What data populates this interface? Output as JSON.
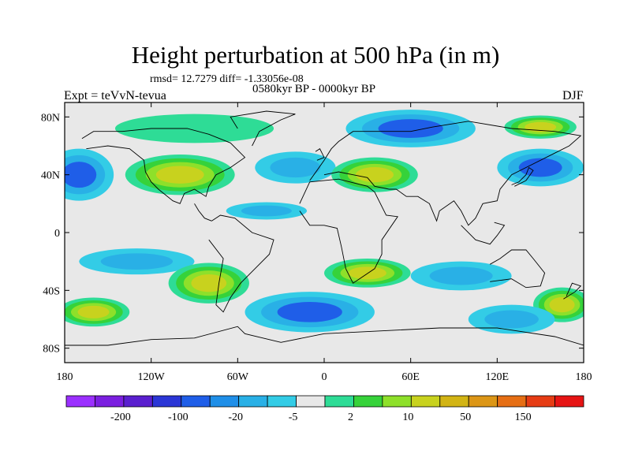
{
  "title": "Height perturbation at 500 hPa (in m)",
  "stats_text": "rmsd= 12.7279 diff= -1.33056e-08",
  "period": "0580kyr BP - 0000kyr BP",
  "experiment": "Expt = teVvN-tevua",
  "season": "DJF",
  "x_axis": {
    "ticks": [
      "180",
      "120W",
      "60W",
      "0",
      "60E",
      "120E",
      "180"
    ]
  },
  "y_axis": {
    "ticks": [
      "80N",
      "40N",
      "0",
      "40S",
      "80S"
    ]
  },
  "colorbar": {
    "colors": [
      "#9b30ff",
      "#7b1fe0",
      "#5a1fcf",
      "#2b36d6",
      "#1f5ee8",
      "#1f8fe8",
      "#29b0e6",
      "#33cce6",
      "#e8e8e8",
      "#2edc96",
      "#36d23a",
      "#8ee02a",
      "#c8d21e",
      "#d2b414",
      "#dc9616",
      "#e66e14",
      "#e63c14",
      "#e61414"
    ],
    "labels": [
      "-200",
      "-100",
      "-20",
      "-5",
      "2",
      "10",
      "50",
      "150"
    ]
  },
  "fields": {
    "background": "#e8e8e8",
    "blobs": [
      {
        "lon": -170,
        "lat": 40,
        "rx": 24,
        "ry": 18,
        "level": -20
      },
      {
        "lon": -100,
        "lat": 40,
        "rx": 38,
        "ry": 14,
        "level": 10
      },
      {
        "lon": -90,
        "lat": 72,
        "rx": 55,
        "ry": 10,
        "level": 2
      },
      {
        "lon": -20,
        "lat": 45,
        "rx": 28,
        "ry": 11,
        "level": -5
      },
      {
        "lon": 35,
        "lat": 40,
        "rx": 30,
        "ry": 12,
        "level": 10
      },
      {
        "lon": 60,
        "lat": 72,
        "rx": 45,
        "ry": 13,
        "level": -20
      },
      {
        "lon": 150,
        "lat": 45,
        "rx": 30,
        "ry": 13,
        "level": -20
      },
      {
        "lon": 150,
        "lat": 73,
        "rx": 25,
        "ry": 8,
        "level": 10
      },
      {
        "lon": -40,
        "lat": 15,
        "rx": 28,
        "ry": 6,
        "level": -5
      },
      {
        "lon": -130,
        "lat": -20,
        "rx": 40,
        "ry": 9,
        "level": -5
      },
      {
        "lon": -80,
        "lat": -35,
        "rx": 28,
        "ry": 14,
        "level": 10
      },
      {
        "lon": 30,
        "lat": -28,
        "rx": 30,
        "ry": 10,
        "level": 10
      },
      {
        "lon": 95,
        "lat": -30,
        "rx": 35,
        "ry": 10,
        "level": -5
      },
      {
        "lon": -10,
        "lat": -55,
        "rx": 45,
        "ry": 14,
        "level": -20
      },
      {
        "lon": -160,
        "lat": -55,
        "rx": 25,
        "ry": 10,
        "level": 10
      },
      {
        "lon": 165,
        "lat": -50,
        "rx": 20,
        "ry": 12,
        "level": 10
      },
      {
        "lon": 130,
        "lat": -60,
        "rx": 30,
        "ry": 10,
        "level": -5
      }
    ]
  }
}
